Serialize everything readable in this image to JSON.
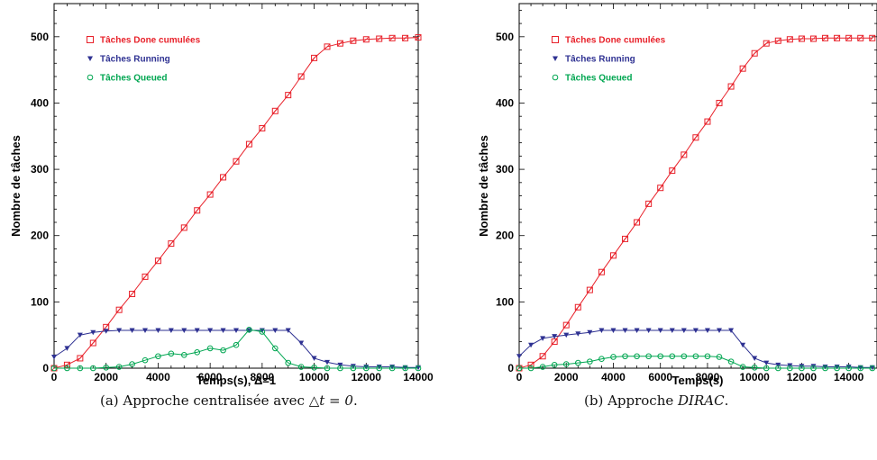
{
  "colors": {
    "done": "#e8212a",
    "running": "#2e3192",
    "queued": "#00a651"
  },
  "chart_data": [
    {
      "type": "line",
      "title": "",
      "xlabel": "Temps(s), Δ=1",
      "ylabel": "Nombre de tâches",
      "xlim": [
        0,
        14000
      ],
      "ylim": [
        0,
        550
      ],
      "xticks": [
        0,
        2000,
        4000,
        6000,
        8000,
        10000,
        12000,
        14000
      ],
      "yticks": [
        0,
        100,
        200,
        300,
        400,
        500
      ],
      "legend_position": "top-left",
      "series": [
        {
          "name": "Tâches Done cumulées",
          "key": "done",
          "marker": "square-cross",
          "x": [
            0,
            500,
            1000,
            1500,
            2000,
            2500,
            3000,
            3500,
            4000,
            4500,
            5000,
            5500,
            6000,
            6500,
            7000,
            7500,
            8000,
            8500,
            9000,
            9500,
            10000,
            10500,
            11000,
            11500,
            12000,
            12500,
            13000,
            13500,
            14000
          ],
          "y": [
            0,
            5,
            15,
            38,
            62,
            88,
            112,
            138,
            162,
            188,
            212,
            238,
            262,
            288,
            312,
            338,
            362,
            388,
            412,
            440,
            468,
            485,
            490,
            494,
            496,
            497,
            498,
            498,
            499
          ]
        },
        {
          "name": "Tâches Running",
          "key": "running",
          "marker": "triangle-down",
          "x": [
            0,
            500,
            1000,
            1500,
            2000,
            2500,
            3000,
            3500,
            4000,
            4500,
            5000,
            5500,
            6000,
            6500,
            7000,
            7500,
            8000,
            8500,
            9000,
            9500,
            10000,
            10500,
            11000,
            11500,
            12000,
            12500,
            13000,
            13500,
            14000
          ],
          "y": [
            17,
            30,
            50,
            54,
            56,
            57,
            57,
            57,
            57,
            57,
            57,
            57,
            57,
            57,
            57,
            57,
            57,
            57,
            57,
            38,
            15,
            9,
            5,
            3,
            2,
            2,
            2,
            1,
            1
          ]
        },
        {
          "name": "Tâches Queued",
          "key": "queued",
          "marker": "circle",
          "x": [
            0,
            500,
            1000,
            1500,
            2000,
            2500,
            3000,
            3500,
            4000,
            4500,
            5000,
            5500,
            6000,
            6500,
            7000,
            7500,
            8000,
            8500,
            9000,
            9500,
            10000,
            10500,
            11000,
            11500,
            12000,
            12500,
            13000,
            13500,
            14000
          ],
          "y": [
            0,
            0,
            0,
            0,
            1,
            2,
            6,
            12,
            18,
            22,
            20,
            24,
            30,
            27,
            35,
            58,
            55,
            30,
            8,
            2,
            1,
            0,
            0,
            0,
            0,
            0,
            0,
            0,
            0
          ]
        }
      ]
    },
    {
      "type": "line",
      "title": "",
      "xlabel": "Temps(s)",
      "ylabel": "Nombre de tâches",
      "xlim": [
        0,
        15200
      ],
      "ylim": [
        0,
        550
      ],
      "xticks": [
        0,
        2000,
        4000,
        6000,
        8000,
        10000,
        12000,
        14000
      ],
      "yticks": [
        0,
        100,
        200,
        300,
        400,
        500
      ],
      "legend_position": "top-left",
      "series": [
        {
          "name": "Tâches Done cumulées",
          "key": "done",
          "marker": "square-cross",
          "x": [
            0,
            500,
            1000,
            1500,
            2000,
            2500,
            3000,
            3500,
            4000,
            4500,
            5000,
            5500,
            6000,
            6500,
            7000,
            7500,
            8000,
            8500,
            9000,
            9500,
            10000,
            10500,
            11000,
            11500,
            12000,
            12500,
            13000,
            13500,
            14000,
            14500,
            15000
          ],
          "y": [
            0,
            5,
            18,
            40,
            65,
            92,
            118,
            145,
            170,
            195,
            220,
            248,
            272,
            298,
            322,
            348,
            372,
            400,
            425,
            452,
            475,
            490,
            494,
            496,
            497,
            497,
            498,
            498,
            498,
            498,
            498
          ]
        },
        {
          "name": "Tâches Running",
          "key": "running",
          "marker": "triangle-down",
          "x": [
            0,
            500,
            1000,
            1500,
            2000,
            2500,
            3000,
            3500,
            4000,
            4500,
            5000,
            5500,
            6000,
            6500,
            7000,
            7500,
            8000,
            8500,
            9000,
            9500,
            10000,
            10500,
            11000,
            11500,
            12000,
            12500,
            13000,
            13500,
            14000,
            14500,
            15000
          ],
          "y": [
            18,
            35,
            45,
            48,
            50,
            52,
            54,
            57,
            57,
            57,
            57,
            57,
            57,
            57,
            57,
            57,
            57,
            57,
            57,
            35,
            15,
            8,
            5,
            4,
            3,
            3,
            2,
            2,
            2,
            1,
            1
          ]
        },
        {
          "name": "Tâches Queued",
          "key": "queued",
          "marker": "circle",
          "x": [
            0,
            500,
            1000,
            1500,
            2000,
            2500,
            3000,
            3500,
            4000,
            4500,
            5000,
            5500,
            6000,
            6500,
            7000,
            7500,
            8000,
            8500,
            9000,
            9500,
            10000,
            10500,
            11000,
            11500,
            12000,
            12500,
            13000,
            13500,
            14000,
            14500,
            15000
          ],
          "y": [
            0,
            0,
            2,
            5,
            6,
            8,
            10,
            14,
            17,
            18,
            18,
            18,
            18,
            18,
            18,
            18,
            18,
            17,
            10,
            2,
            1,
            0,
            0,
            0,
            0,
            0,
            0,
            0,
            0,
            0,
            0
          ]
        }
      ]
    }
  ],
  "captions": [
    {
      "prefix": "(a) Approche centralisée avec ",
      "math": "△t = 0",
      "suffix": "."
    },
    {
      "prefix": "(b) Approche ",
      "name": "DIRAC",
      "suffix": "."
    }
  ]
}
